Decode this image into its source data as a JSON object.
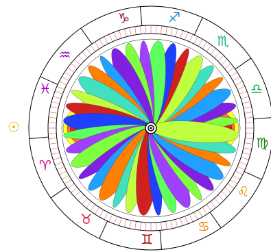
{
  "signs": [
    {
      "glyph": "☉",
      "color": "#f5a000"
    },
    {
      "glyph": "♈",
      "color": "#e0007a"
    },
    {
      "glyph": "♉",
      "color": "#e0103a"
    },
    {
      "glyph": "♊",
      "color": "#b00000"
    },
    {
      "glyph": "♋",
      "color": "#f08000"
    },
    {
      "glyph": "♌",
      "color": "#f09000"
    },
    {
      "glyph": "♍",
      "color": "#208020"
    },
    {
      "glyph": "♎",
      "color": "#10a040"
    },
    {
      "glyph": "♏",
      "color": "#10b080"
    },
    {
      "glyph": "♐",
      "color": "#2090d0"
    },
    {
      "glyph": "♑",
      "color": "#900040"
    },
    {
      "glyph": "♒",
      "color": "#8000c0"
    },
    {
      "glyph": "♓",
      "color": "#a000d0"
    }
  ]
}
